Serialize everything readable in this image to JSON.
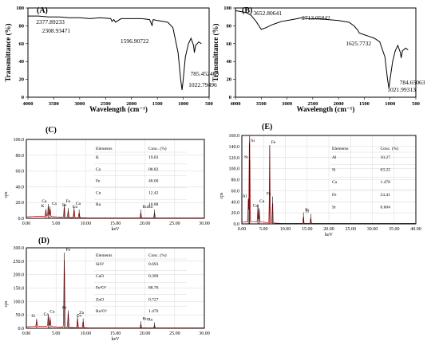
{
  "chart_data": [
    {
      "panel": "(A)",
      "type": "line",
      "xlabel": "Wavelength (cm⁻¹)",
      "ylabel": "Transmittance (%)",
      "xlim": [
        4000,
        500
      ],
      "ylim": [
        0,
        100
      ],
      "x_ticks": [
        4000,
        3500,
        3000,
        2500,
        2000,
        1500,
        1000,
        500
      ],
      "y_ticks": [
        0,
        20,
        40,
        60,
        80,
        100
      ],
      "x": [
        4000,
        3800,
        3600,
        3400,
        3200,
        3000,
        2800,
        2600,
        2400,
        2377,
        2340,
        2308,
        2200,
        2000,
        1800,
        1650,
        1600,
        1597,
        1580,
        1500,
        1400,
        1300,
        1200,
        1100,
        1050,
        1023,
        1000,
        960,
        900,
        850,
        800,
        785,
        760,
        700,
        650
      ],
      "y": [
        91,
        91,
        90,
        90,
        89,
        89,
        88,
        89,
        88,
        85,
        87,
        84,
        88,
        88,
        88,
        87,
        80,
        84,
        87,
        86,
        85,
        84,
        78,
        50,
        20,
        8,
        20,
        45,
        60,
        66,
        58,
        50,
        58,
        62,
        60
      ],
      "annotations": [
        {
          "label": "2377.89233",
          "x": 2377.89233
        },
        {
          "label": "2308.93471",
          "x": 2308.93471
        },
        {
          "label": "1596.90722",
          "x": 1596.90722
        },
        {
          "label": "1022.79496",
          "x": 1022.79496
        },
        {
          "label": "785.452463",
          "x": 785.452463
        }
      ]
    },
    {
      "panel": "(B)",
      "type": "line",
      "xlabel": "Wavelength (cm⁻¹)",
      "ylabel": "Transmittance (%)",
      "xlim": [
        4000,
        500
      ],
      "ylim": [
        0,
        100
      ],
      "x_ticks": [
        4000,
        3500,
        3000,
        2500,
        2000,
        1500,
        1000,
        500
      ],
      "y_ticks": [
        0,
        20,
        40,
        60,
        80,
        100
      ],
      "x": [
        4000,
        3900,
        3800,
        3700,
        3600,
        3500,
        3400,
        3300,
        3200,
        3100,
        3000,
        2900,
        2800,
        2713,
        2600,
        2400,
        2200,
        2000,
        1800,
        1700,
        1626,
        1600,
        1500,
        1400,
        1300,
        1200,
        1100,
        1050,
        1022,
        1000,
        950,
        900,
        850,
        800,
        785,
        760,
        700,
        650
      ],
      "y": [
        97,
        96,
        95,
        92,
        85,
        76,
        78,
        81,
        83,
        85,
        86,
        87,
        88,
        89,
        88,
        88,
        87,
        86,
        84,
        80,
        75,
        72,
        70,
        68,
        66,
        62,
        45,
        20,
        10,
        20,
        40,
        52,
        58,
        50,
        44,
        52,
        55,
        53
      ],
      "annotations": [
        {
          "label": "3652.80641",
          "x": 3652.80641
        },
        {
          "label": "2713.05842",
          "x": 2713.05842
        },
        {
          "label": "1625.7732",
          "x": 1625.7732
        },
        {
          "label": "1021.99313",
          "x": 1021.99313
        },
        {
          "label": "784.65063",
          "x": 784.65063
        }
      ]
    },
    {
      "panel": "(C)",
      "type": "line",
      "xlabel": "keV",
      "ylabel": "cps",
      "xlim": [
        0,
        30
      ],
      "ylim": [
        0,
        100
      ],
      "x_ticks": [
        "0.00",
        "5.00",
        "10.00",
        "15.00",
        "20.00",
        "25.00",
        "30.00"
      ],
      "y_ticks": [
        "0.0",
        "20.0",
        "40.0",
        "60.0",
        "80.0",
        "100.0"
      ],
      "peaks": [
        {
          "label": "Ca",
          "x": 3.7,
          "y": 14
        },
        {
          "label": "Ca",
          "x": 4.0,
          "y": 11
        },
        {
          "label": "K",
          "x": 3.3,
          "y": 8
        },
        {
          "label": "Fe",
          "x": 6.4,
          "y": 14
        },
        {
          "label": "Fe",
          "x": 7.06,
          "y": 9
        },
        {
          "label": "Cu",
          "x": 8.05,
          "y": 11
        },
        {
          "label": "Cu",
          "x": 8.9,
          "y": 7
        },
        {
          "label": "Ru",
          "x": 19.3,
          "y": 7
        },
        {
          "label": "Ru",
          "x": 21.6,
          "y": 7
        }
      ],
      "table": {
        "headers": [
          "Elements",
          "Conc. (%)"
        ],
        "rows": [
          [
            "K",
            "19.83"
          ],
          [
            "Ca",
            "08.82"
          ],
          [
            "Fe",
            "48.00"
          ],
          [
            "Cu",
            "12.42"
          ],
          [
            "Ru",
            "10.88"
          ]
        ]
      }
    },
    {
      "panel": "(E)",
      "type": "line",
      "xlabel": "keV",
      "ylabel": "cps",
      "xlim": [
        0,
        40
      ],
      "ylim": [
        0,
        160
      ],
      "x_ticks": [
        "0.00",
        "5.00",
        "10.00",
        "15.00",
        "20.00",
        "25.00",
        "30.00",
        "35.00",
        "40.00"
      ],
      "y_ticks": [
        "0.0",
        "20.0",
        "40.0",
        "60.0",
        "80.0",
        "100.0",
        "120.0",
        "140.0",
        "160.0"
      ],
      "peaks": [
        {
          "label": "Al",
          "x": 1.49,
          "y": 40
        },
        {
          "label": "Si",
          "x": 1.74,
          "y": 140
        },
        {
          "label": "Sr",
          "x": 1.81,
          "y": 110
        },
        {
          "label": "Ca",
          "x": 3.69,
          "y": 30
        },
        {
          "label": "Ca",
          "x": 4.01,
          "y": 22
        },
        {
          "label": "Fe",
          "x": 6.4,
          "y": 137
        },
        {
          "label": "Fe",
          "x": 7.06,
          "y": 44
        },
        {
          "label": "Sr",
          "x": 14.16,
          "y": 15
        },
        {
          "label": "Sr",
          "x": 15.84,
          "y": 12
        }
      ],
      "table": {
        "headers": [
          "Elements",
          "Conc. (%)"
        ],
        "rows": [
          [
            "Al",
            "10.27"
          ],
          [
            "Si",
            "63.22"
          ],
          [
            "Ca",
            "1.478"
          ],
          [
            "Fe",
            "24.41"
          ],
          [
            "Sr",
            "0.604"
          ]
        ]
      }
    },
    {
      "panel": "(D)",
      "type": "line",
      "xlabel": "keV",
      "ylabel": "cps",
      "xlim": [
        0,
        30
      ],
      "ylim": [
        0,
        300
      ],
      "x_ticks": [
        "0.00",
        "5.00",
        "10.00",
        "15.00",
        "20.00",
        "25.00",
        "30.00"
      ],
      "y_ticks": [
        "0.0",
        "50.0",
        "100.0",
        "150.0",
        "200.0",
        "250.0",
        "300.0"
      ],
      "peaks": [
        {
          "label": "Si",
          "x": 1.74,
          "y": 24
        },
        {
          "label": "Ca",
          "x": 3.69,
          "y": 40
        },
        {
          "label": "Ca",
          "x": 4.01,
          "y": 30
        },
        {
          "label": "Fe",
          "x": 6.4,
          "y": 270
        },
        {
          "label": "Fe",
          "x": 7.06,
          "y": 55
        },
        {
          "label": "Zn",
          "x": 8.63,
          "y": 35
        },
        {
          "label": "Zn",
          "x": 9.57,
          "y": 25
        },
        {
          "label": "Ru",
          "x": 19.3,
          "y": 14
        },
        {
          "label": "Ru",
          "x": 21.6,
          "y": 10
        }
      ],
      "table": {
        "headers": [
          "Elements",
          "Conc. (%)"
        ],
        "rows": [
          [
            "SiO²",
            "0.693"
          ],
          [
            "CaO",
            "0.399"
          ],
          [
            "Fe²O³",
            "88.70"
          ],
          [
            "ZnO",
            "0.727"
          ],
          [
            "Ru²O³",
            "1.479"
          ]
        ]
      }
    }
  ]
}
